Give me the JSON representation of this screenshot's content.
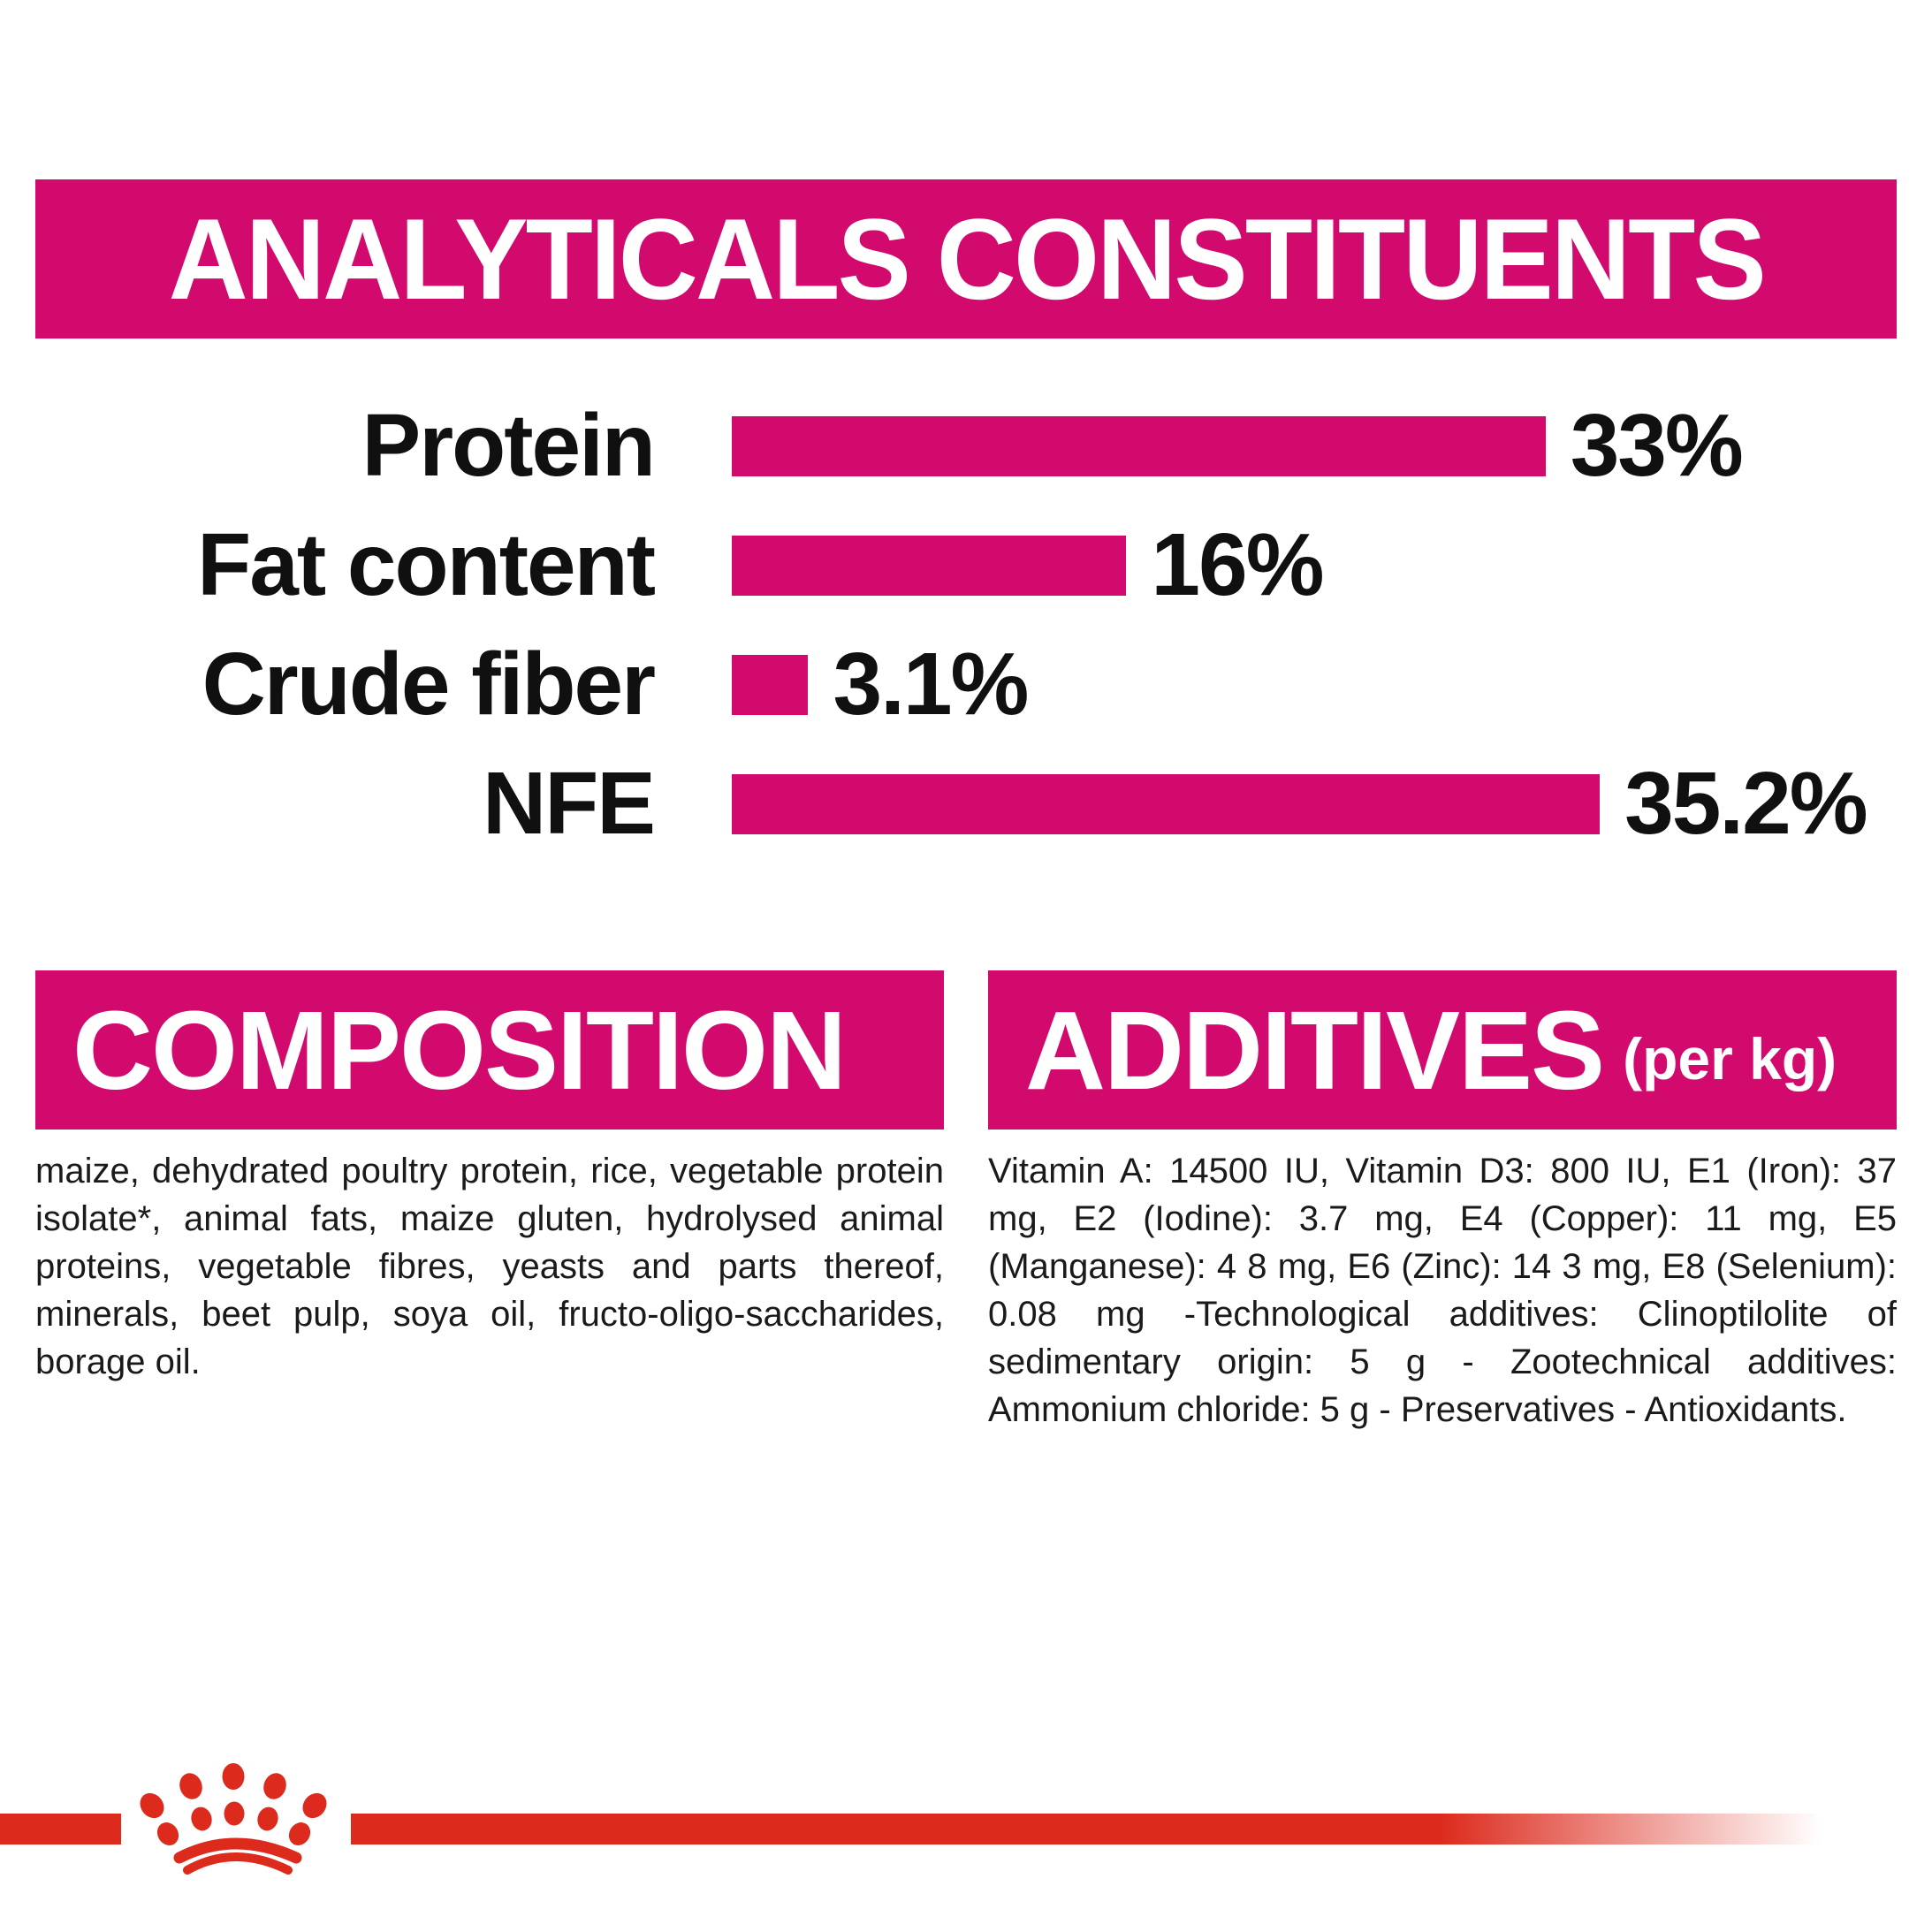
{
  "colors": {
    "magenta": "#D30A6E",
    "red": "#DC2A1C",
    "text": "#101010",
    "background": "#FFFFFF"
  },
  "header": {
    "title": "ANALYTICALS CONSTITUENTS"
  },
  "chart_data": {
    "type": "bar",
    "orientation": "horizontal",
    "title": "ANALYTICALS CONSTITUENTS",
    "categories": [
      "Protein",
      "Fat content",
      "Crude fiber",
      "NFE"
    ],
    "values": [
      33,
      16,
      3.1,
      35.2
    ],
    "value_labels": [
      "33%",
      "16%",
      "3.1%",
      "35.2%"
    ],
    "xlim": [
      0,
      40
    ],
    "bar_color": "#D30A6E",
    "grid": false,
    "legend": false
  },
  "composition": {
    "title": "COMPOSITION",
    "body": "maize, dehydrated poultry protein, rice, vegetable protein isolate*, animal fats, maize gluten, hydrolysed animal proteins, vegetable fibres, yeasts and parts thereof, minerals, beet pulp, soya oil, fructo-oligo-saccharides, borage oil."
  },
  "additives": {
    "title": "ADDITIVES",
    "unit_suffix": "(per kg)",
    "body": "Vitamin A: 14500 IU, Vitamin D3: 800 IU, E1 (Iron): 37 mg, E2 (Iodine): 3.7 mg, E4 (Copper): 11 mg, E5 (Manganese): 4 8 mg, E6 (Zinc): 14 3 mg, E8 (Selenium): 0.08 mg -Technological additives: Clinoptilolite of sedimentary origin: 5 g - Zootechnical additives: Ammonium chloride: 5 g - Preservatives - Antioxidants."
  },
  "footer": {
    "brand_logo": "royal-canin-crown"
  }
}
